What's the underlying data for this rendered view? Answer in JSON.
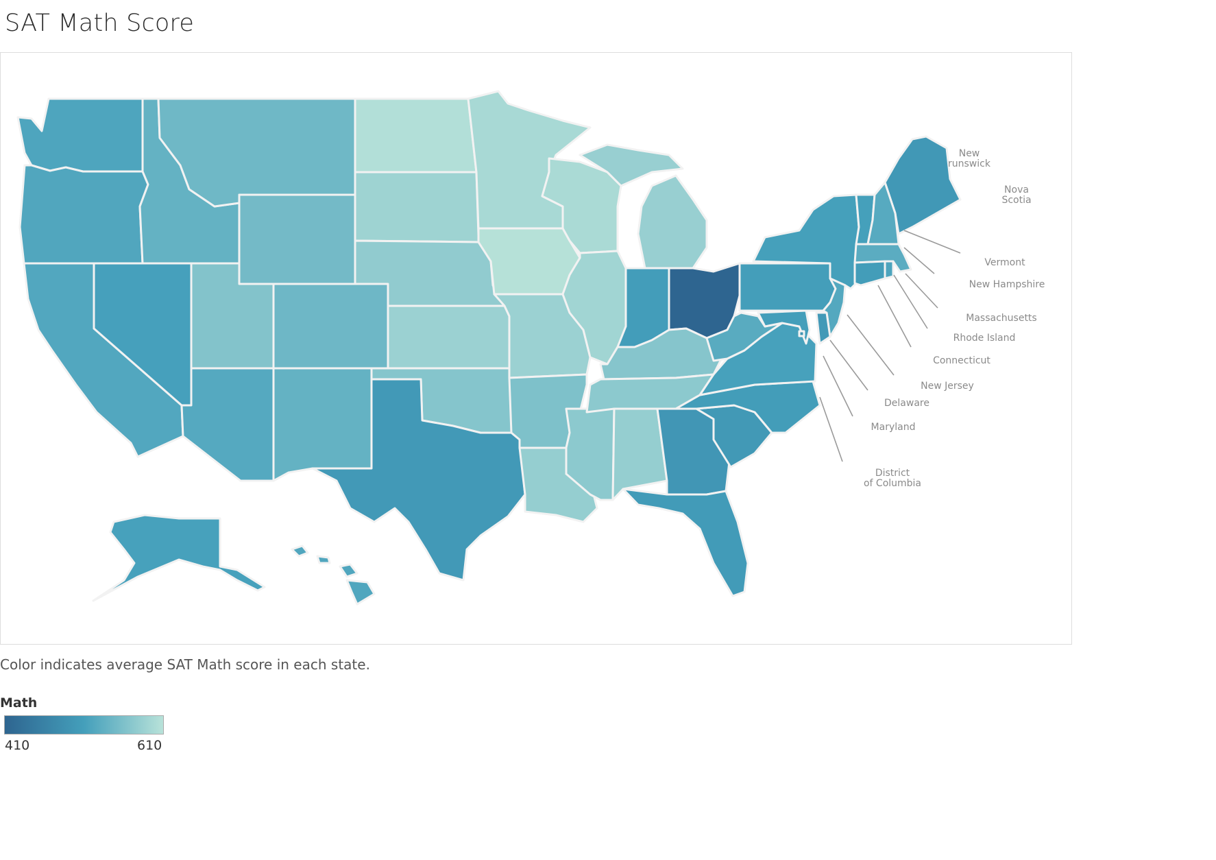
{
  "title": "SAT Math Score",
  "caption": "Color indicates average SAT Math score in each state.",
  "legend": {
    "title": "Math",
    "min_label": "410",
    "max_label": "610",
    "min_color": "#2e6590",
    "mid_color": "#449fbb",
    "max_color": "#b8e2d9"
  },
  "map_data": {
    "type": "choropleth",
    "measure": "Math",
    "range": [
      410,
      610
    ],
    "states": [
      {
        "id": "WA",
        "name": "Washington",
        "value": 519
      },
      {
        "id": "OR",
        "name": "Oregon",
        "value": 521
      },
      {
        "id": "CA",
        "name": "California",
        "value": 522
      },
      {
        "id": "NV",
        "name": "Nevada",
        "value": 512
      },
      {
        "id": "ID",
        "name": "Idaho",
        "value": 538
      },
      {
        "id": "MT",
        "name": "Montana",
        "value": 547
      },
      {
        "id": "WY",
        "name": "Wyoming",
        "value": 551
      },
      {
        "id": "UT",
        "name": "Utah",
        "value": 564
      },
      {
        "id": "AZ",
        "name": "Arizona",
        "value": 525
      },
      {
        "id": "CO",
        "name": "Colorado",
        "value": 546
      },
      {
        "id": "NM",
        "name": "New Mexico",
        "value": 538
      },
      {
        "id": "ND",
        "name": "North Dakota",
        "value": 605
      },
      {
        "id": "SD",
        "name": "South Dakota",
        "value": 588
      },
      {
        "id": "NE",
        "name": "Nebraska",
        "value": 576
      },
      {
        "id": "KS",
        "name": "Kansas",
        "value": 585
      },
      {
        "id": "OK",
        "name": "Oklahoma",
        "value": 566
      },
      {
        "id": "TX",
        "name": "Texas",
        "value": 500
      },
      {
        "id": "MN",
        "name": "Minnesota",
        "value": 596
      },
      {
        "id": "IA",
        "name": "Iowa",
        "value": 608
      },
      {
        "id": "MO",
        "name": "Missouri",
        "value": 585
      },
      {
        "id": "AR",
        "name": "Arkansas",
        "value": 560
      },
      {
        "id": "LA",
        "name": "Louisiana",
        "value": 580
      },
      {
        "id": "WI",
        "name": "Wisconsin",
        "value": 598
      },
      {
        "id": "IL",
        "name": "Illinois",
        "value": 590
      },
      {
        "id": "MS",
        "name": "Mississippi",
        "value": 572
      },
      {
        "id": "MI",
        "name": "Michigan",
        "value": 582
      },
      {
        "id": "IN",
        "name": "Indiana",
        "value": 507
      },
      {
        "id": "OH",
        "name": "Ohio",
        "value": 410
      },
      {
        "id": "KY",
        "name": "Kentucky",
        "value": 567
      },
      {
        "id": "TN",
        "name": "Tennessee",
        "value": 572
      },
      {
        "id": "AL",
        "name": "Alabama",
        "value": 580
      },
      {
        "id": "GA",
        "name": "Georgia",
        "value": 495
      },
      {
        "id": "FL",
        "name": "Florida",
        "value": 503
      },
      {
        "id": "SC",
        "name": "South Carolina",
        "value": 499
      },
      {
        "id": "NC",
        "name": "North Carolina",
        "value": 506
      },
      {
        "id": "VA",
        "name": "Virginia",
        "value": 513
      },
      {
        "id": "WV",
        "name": "West Virginia",
        "value": 528
      },
      {
        "id": "PA",
        "name": "Pennsylvania",
        "value": 508
      },
      {
        "id": "NY",
        "name": "New York",
        "value": 511
      },
      {
        "id": "ME",
        "name": "Maine",
        "value": 498
      },
      {
        "id": "VT",
        "name": "Vermont",
        "value": 511
      },
      {
        "id": "NH",
        "name": "New Hampshire",
        "value": 526
      },
      {
        "id": "MA",
        "name": "Massachusetts",
        "value": 530
      },
      {
        "id": "RI",
        "name": "Rhode Island",
        "value": 518
      },
      {
        "id": "CT",
        "name": "Connecticut",
        "value": 506
      },
      {
        "id": "NJ",
        "name": "New Jersey",
        "value": 524
      },
      {
        "id": "DE",
        "name": "Delaware",
        "value": 500
      },
      {
        "id": "MD",
        "name": "Maryland",
        "value": 508
      },
      {
        "id": "DC",
        "name": "District of Columbia",
        "value": 492
      },
      {
        "id": "AK",
        "name": "Alaska",
        "value": 513
      },
      {
        "id": "HI",
        "name": "Hawaii",
        "value": 520
      }
    ],
    "callouts": [
      {
        "label": "New\nrunswick"
      },
      {
        "label": "Nova\nScotia"
      },
      {
        "label": "Vermont"
      },
      {
        "label": "New Hampshire"
      },
      {
        "label": "Massachusetts"
      },
      {
        "label": "Rhode Island"
      },
      {
        "label": "Connecticut"
      },
      {
        "label": "New Jersey"
      },
      {
        "label": "Delaware"
      },
      {
        "label": "Maryland"
      },
      {
        "label": "District\nof Columbia"
      }
    ]
  }
}
